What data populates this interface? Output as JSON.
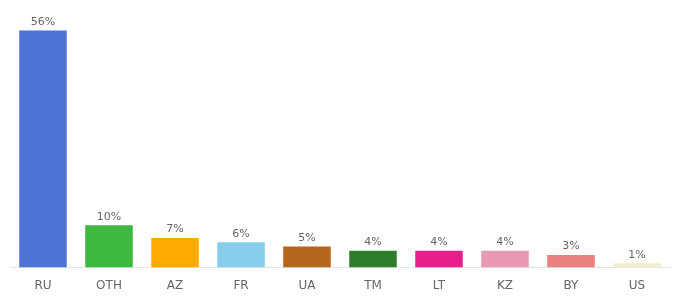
{
  "chart_data": {
    "type": "bar",
    "categories": [
      "RU",
      "OTH",
      "AZ",
      "FR",
      "UA",
      "TM",
      "LT",
      "KZ",
      "BY",
      "US"
    ],
    "values": [
      56,
      10,
      7,
      6,
      5,
      4,
      4,
      4,
      3,
      1
    ],
    "value_labels": [
      "56%",
      "10%",
      "7%",
      "6%",
      "5%",
      "4%",
      "4%",
      "4%",
      "3%",
      "1%"
    ],
    "colors": [
      "#4e72d6",
      "#3dba3d",
      "#ffaa00",
      "#87ceeb",
      "#b5651d",
      "#2d7d2d",
      "#e91e8c",
      "#e897b5",
      "#e88080",
      "#f0eecc"
    ],
    "ylim": [
      0,
      58
    ],
    "grid": false,
    "data_labels": true,
    "tick_labels": "x"
  }
}
